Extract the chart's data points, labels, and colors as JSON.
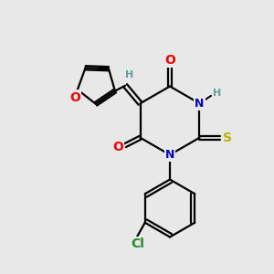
{
  "background_color": "#e8e8e8",
  "bond_color": "#000000",
  "atom_colors": {
    "O": "#ff0000",
    "N": "#0000cd",
    "S": "#b8b800",
    "Cl": "#228b22",
    "H_label": "#5f9ea0",
    "C": "#000000"
  },
  "font_size_atoms": 10,
  "font_size_small": 8,
  "lw": 1.6
}
